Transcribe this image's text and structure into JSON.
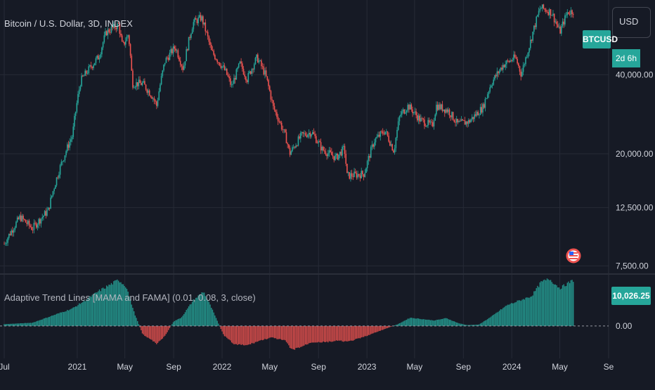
{
  "symbol_title": "Bitcoin / U.S. Dollar, 3D, INDEX",
  "indicator_title": "Adaptive Trend Lines [MAMA and FAMA] (0.01, 0.08, 3, close)",
  "currency_button": "USD",
  "symbol_badge": "BTCUSD",
  "countdown_badge": "2d 6h",
  "indicator_value_badge": "10,026.25",
  "colors": {
    "background": "#161a25",
    "up": "#26a69a",
    "down": "#ef5350",
    "text": "#d1d4dc",
    "grid": "#262a36"
  },
  "icons": {
    "flag": "us-flag-icon"
  },
  "chart_data": [
    {
      "type": "candlestick",
      "title": "Bitcoin / U.S. Dollar, 3D, INDEX",
      "y_scale": "log",
      "ylim": [
        7200,
        68000
      ],
      "y_ticks": [
        {
          "value": 40000,
          "label": "40,000.00"
        },
        {
          "value": 20000,
          "label": "20,000.00"
        },
        {
          "value": 12500,
          "label": "12,500.00"
        },
        {
          "value": 7500,
          "label": "7,500.00"
        }
      ],
      "x_ticks": [
        "Jul",
        "2021",
        "May",
        "Sep",
        "2022",
        "May",
        "Sep",
        "2023",
        "May",
        "Sep",
        "2024",
        "May",
        "Se"
      ],
      "x_tick_dates": [
        "2020-07-01",
        "2021-01-01",
        "2021-05-01",
        "2021-09-01",
        "2022-01-01",
        "2022-05-01",
        "2022-09-01",
        "2023-01-01",
        "2023-05-01",
        "2023-09-01",
        "2024-01-01",
        "2024-05-01",
        "2024-09-01"
      ],
      "price_path": [
        [
          "2020-07-01",
          9100
        ],
        [
          "2020-08-10",
          11500
        ],
        [
          "2020-09-10",
          10400
        ],
        [
          "2020-10-20",
          12200
        ],
        [
          "2020-11-20",
          18000
        ],
        [
          "2020-12-20",
          23500
        ],
        [
          "2021-01-10",
          38000
        ],
        [
          "2021-02-10",
          44000
        ],
        [
          "2021-02-25",
          47000
        ],
        [
          "2021-03-15",
          58000
        ],
        [
          "2021-04-15",
          62000
        ],
        [
          "2021-04-25",
          51000
        ],
        [
          "2021-05-10",
          57000
        ],
        [
          "2021-05-20",
          37000
        ],
        [
          "2021-06-15",
          37000
        ],
        [
          "2021-07-10",
          33000
        ],
        [
          "2021-07-20",
          30500
        ],
        [
          "2021-08-10",
          45000
        ],
        [
          "2021-09-05",
          51000
        ],
        [
          "2021-09-25",
          42000
        ],
        [
          "2021-10-20",
          63000
        ],
        [
          "2021-11-10",
          66000
        ],
        [
          "2021-12-05",
          49000
        ],
        [
          "2022-01-10",
          41000
        ],
        [
          "2022-01-25",
          36000
        ],
        [
          "2022-02-15",
          44000
        ],
        [
          "2022-03-05",
          38500
        ],
        [
          "2022-03-30",
          46500
        ],
        [
          "2022-04-20",
          40000
        ],
        [
          "2022-05-10",
          30000
        ],
        [
          "2022-06-13",
          22500
        ],
        [
          "2022-06-20",
          20000
        ],
        [
          "2022-07-20",
          23500
        ],
        [
          "2022-08-15",
          24200
        ],
        [
          "2022-09-10",
          20800
        ],
        [
          "2022-10-15",
          19300
        ],
        [
          "2022-11-05",
          21000
        ],
        [
          "2022-11-12",
          16500
        ],
        [
          "2022-12-25",
          16800
        ],
        [
          "2023-01-20",
          22500
        ],
        [
          "2023-02-15",
          24500
        ],
        [
          "2023-03-10",
          20500
        ],
        [
          "2023-03-25",
          28000
        ],
        [
          "2023-04-15",
          30500
        ],
        [
          "2023-05-15",
          26900
        ],
        [
          "2023-06-15",
          25500
        ],
        [
          "2023-06-25",
          30500
        ],
        [
          "2023-07-25",
          29200
        ],
        [
          "2023-08-17",
          26000
        ],
        [
          "2023-09-15",
          26500
        ],
        [
          "2023-10-20",
          30000
        ],
        [
          "2023-11-10",
          37000
        ],
        [
          "2023-12-10",
          43500
        ],
        [
          "2024-01-10",
          46500
        ],
        [
          "2024-01-25",
          40000
        ],
        [
          "2024-02-15",
          52000
        ],
        [
          "2024-03-13",
          72000
        ],
        [
          "2024-04-10",
          69000
        ],
        [
          "2024-05-01",
          58000
        ],
        [
          "2024-05-20",
          69000
        ],
        [
          "2024-06-06",
          70000
        ]
      ]
    },
    {
      "type": "histogram",
      "title": "Adaptive Trend Lines [MAMA and FAMA] (0.01, 0.08, 3, close)",
      "ylim": [
        -5500,
        10500
      ],
      "y_ticks": [
        {
          "value": 0,
          "label": "0.00"
        }
      ],
      "last_value": 10026.25,
      "path": [
        [
          "2020-07-01",
          400
        ],
        [
          "2020-09-10",
          700
        ],
        [
          "2020-11-01",
          2300
        ],
        [
          "2020-12-20",
          3800
        ],
        [
          "2021-01-20",
          5500
        ],
        [
          "2021-02-25",
          7600
        ],
        [
          "2021-03-30",
          9200
        ],
        [
          "2021-04-15",
          10000
        ],
        [
          "2021-05-05",
          8500
        ],
        [
          "2021-05-25",
          2800
        ],
        [
          "2021-06-15",
          -1800
        ],
        [
          "2021-07-20",
          -3800
        ],
        [
          "2021-08-10",
          -2200
        ],
        [
          "2021-09-01",
          1000
        ],
        [
          "2021-09-20",
          1800
        ],
        [
          "2021-10-20",
          5500
        ],
        [
          "2021-11-15",
          7500
        ],
        [
          "2021-12-05",
          4000
        ],
        [
          "2022-01-05",
          -2000
        ],
        [
          "2022-02-01",
          -4000
        ],
        [
          "2022-03-05",
          -4200
        ],
        [
          "2022-04-05",
          -3200
        ],
        [
          "2022-05-05",
          -2500
        ],
        [
          "2022-06-10",
          -3200
        ],
        [
          "2022-06-25",
          -5200
        ],
        [
          "2022-07-20",
          -4500
        ],
        [
          "2022-08-15",
          -3500
        ],
        [
          "2022-09-20",
          -3500
        ],
        [
          "2022-10-20",
          -3200
        ],
        [
          "2022-11-15",
          -3400
        ],
        [
          "2022-12-20",
          -2500
        ],
        [
          "2023-01-20",
          -1500
        ],
        [
          "2023-02-20",
          -500
        ],
        [
          "2023-03-20",
          400
        ],
        [
          "2023-04-20",
          1800
        ],
        [
          "2023-05-20",
          1500
        ],
        [
          "2023-06-20",
          1200
        ],
        [
          "2023-07-20",
          1700
        ],
        [
          "2023-08-20",
          600
        ],
        [
          "2023-09-10",
          200
        ],
        [
          "2023-10-10",
          300
        ],
        [
          "2023-11-10",
          2000
        ],
        [
          "2023-12-20",
          4500
        ],
        [
          "2024-01-20",
          5500
        ],
        [
          "2024-02-20",
          6500
        ],
        [
          "2024-03-15",
          9500
        ],
        [
          "2024-04-05",
          10200
        ],
        [
          "2024-05-01",
          8200
        ],
        [
          "2024-06-06",
          10026
        ]
      ]
    }
  ]
}
